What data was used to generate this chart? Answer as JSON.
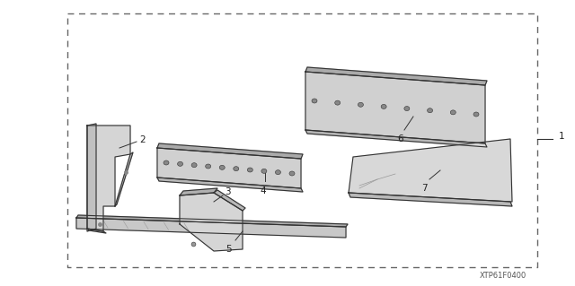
{
  "bg_color": "#ffffff",
  "border_color": "#666666",
  "line_color": "#333333",
  "label_color": "#222222",
  "fig_width": 6.4,
  "fig_height": 3.19,
  "dpi": 100,
  "watermark": "XTP61F0400",
  "fill_main": "#d8d8d8",
  "fill_dark": "#aaaaaa",
  "fill_mid": "#c4c4c4"
}
